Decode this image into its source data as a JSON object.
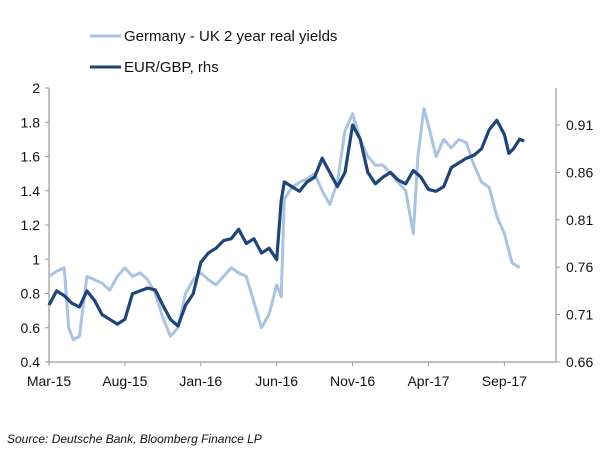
{
  "chart_data": {
    "type": "line",
    "title": "",
    "xlabel": "",
    "ylabel": "",
    "x_unit": "months since Mar-15",
    "x_ticks": [
      {
        "x": 0,
        "label": "Mar-15"
      },
      {
        "x": 5,
        "label": "Aug-15"
      },
      {
        "x": 10,
        "label": "Jan-16"
      },
      {
        "x": 15,
        "label": "Jun-16"
      },
      {
        "x": 20,
        "label": "Nov-16"
      },
      {
        "x": 25,
        "label": "Apr-17"
      },
      {
        "x": 30,
        "label": "Sep-17"
      }
    ],
    "xlim": [
      0,
      33.4
    ],
    "ylim_left": [
      0.4,
      2.0
    ],
    "yticks_left": [
      "0.4",
      "0.6",
      "0.8",
      "1",
      "1.2",
      "1.4",
      "1.6",
      "1.8",
      "2"
    ],
    "ylim_right": [
      0.66,
      0.949
    ],
    "yticks_right": [
      "0.66",
      "0.71",
      "0.76",
      "0.81",
      "0.86",
      "0.91"
    ],
    "legend_position": "top-left",
    "series": [
      {
        "name": "Germany - UK 2 year real yields",
        "axis": "left",
        "color": "#a9c3e0",
        "x": [
          0,
          0.5,
          1,
          1.3,
          1.6,
          2,
          2.5,
          3,
          3.5,
          4,
          4.5,
          5,
          5.5,
          6,
          6.5,
          7,
          7.5,
          8,
          8.5,
          9,
          9.5,
          10,
          10.5,
          11,
          11.5,
          12,
          12.5,
          13,
          13.5,
          14,
          14.5,
          15,
          15.3,
          15.5,
          16,
          16.5,
          17,
          17.5,
          18,
          18.5,
          19,
          19.5,
          20,
          20.5,
          21,
          21.5,
          22,
          22.5,
          23,
          23.5,
          24,
          24.3,
          24.7,
          25,
          25.5,
          26,
          26.5,
          27,
          27.5,
          28,
          28.5,
          29,
          29.5,
          30,
          30.5,
          31
        ],
        "y": [
          0.9,
          0.93,
          0.95,
          0.6,
          0.53,
          0.55,
          0.9,
          0.88,
          0.86,
          0.82,
          0.9,
          0.95,
          0.9,
          0.92,
          0.88,
          0.8,
          0.66,
          0.55,
          0.6,
          0.8,
          0.88,
          0.92,
          0.88,
          0.85,
          0.9,
          0.95,
          0.92,
          0.9,
          0.75,
          0.6,
          0.68,
          0.85,
          0.78,
          1.35,
          1.42,
          1.45,
          1.47,
          1.5,
          1.4,
          1.32,
          1.45,
          1.75,
          1.85,
          1.7,
          1.6,
          1.55,
          1.55,
          1.5,
          1.45,
          1.4,
          1.15,
          1.6,
          1.88,
          1.78,
          1.6,
          1.7,
          1.65,
          1.7,
          1.68,
          1.55,
          1.45,
          1.42,
          1.25,
          1.15,
          0.98,
          0.95
        ]
      },
      {
        "name": "EUR/GBP, rhs",
        "axis": "right",
        "color": "#1f4478",
        "x": [
          0,
          0.5,
          1,
          1.5,
          2,
          2.5,
          3,
          3.5,
          4,
          4.5,
          5,
          5.5,
          6,
          6.5,
          7,
          7.5,
          8,
          8.5,
          9,
          9.5,
          10,
          10.5,
          11,
          11.5,
          12,
          12.5,
          13,
          13.5,
          14,
          14.5,
          15,
          15.3,
          15.5,
          16,
          16.5,
          17,
          17.5,
          18,
          18.5,
          19,
          19.5,
          20,
          20.5,
          21,
          21.5,
          22,
          22.5,
          23,
          23.5,
          24,
          24.5,
          25,
          25.5,
          26,
          26.5,
          27,
          27.5,
          28,
          28.5,
          29,
          29.5,
          30,
          30.3,
          30.6,
          31,
          31.3
        ],
        "y": [
          0.72,
          0.735,
          0.73,
          0.722,
          0.718,
          0.735,
          0.725,
          0.71,
          0.705,
          0.7,
          0.705,
          0.732,
          0.735,
          0.738,
          0.736,
          0.72,
          0.705,
          0.698,
          0.72,
          0.732,
          0.765,
          0.775,
          0.78,
          0.788,
          0.79,
          0.8,
          0.785,
          0.79,
          0.775,
          0.78,
          0.768,
          0.83,
          0.85,
          0.845,
          0.84,
          0.85,
          0.855,
          0.875,
          0.86,
          0.845,
          0.86,
          0.91,
          0.895,
          0.86,
          0.848,
          0.855,
          0.86,
          0.852,
          0.848,
          0.862,
          0.855,
          0.842,
          0.84,
          0.845,
          0.865,
          0.87,
          0.875,
          0.878,
          0.885,
          0.905,
          0.915,
          0.9,
          0.88,
          0.885,
          0.895,
          0.893
        ]
      }
    ]
  },
  "source": "Source: Deutsche Bank, Bloomberg Finance LP"
}
